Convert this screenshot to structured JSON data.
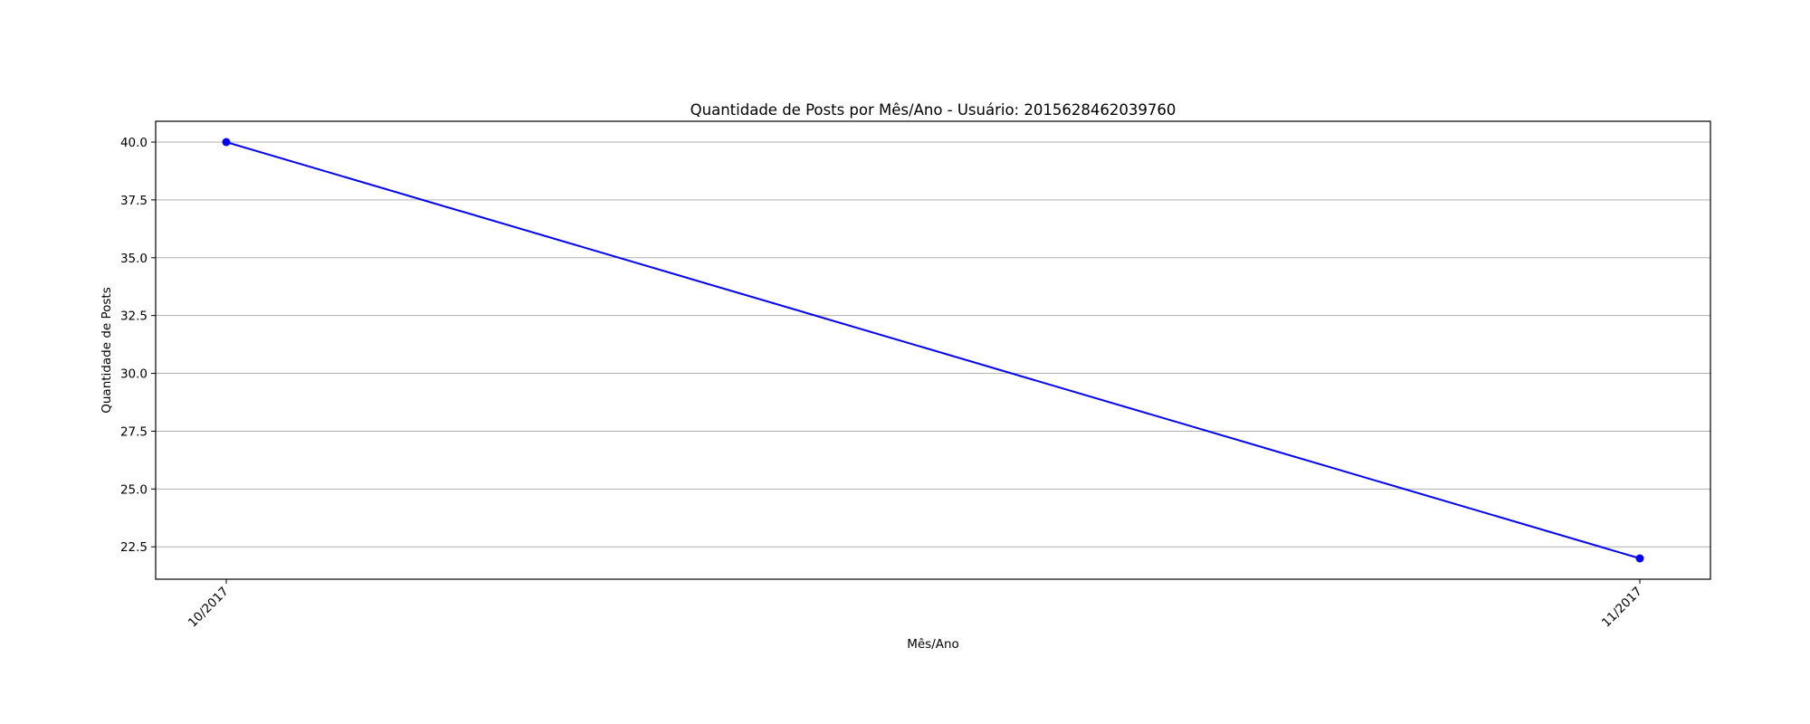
{
  "chart_data": {
    "type": "line",
    "title": "Quantidade de Posts por Mês/Ano - Usuário: 2015628462039760",
    "xlabel": "Mês/Ano",
    "ylabel": "Quantidade de Posts",
    "categories": [
      "10/2017",
      "11/2017"
    ],
    "series": [
      {
        "values": [
          40,
          22
        ],
        "color": "#0000ff",
        "marker": "circle"
      }
    ],
    "ylim": [
      21.1,
      40.9
    ],
    "yticks": [
      "22.5",
      "25.0",
      "27.5",
      "30.0",
      "32.5",
      "35.0",
      "37.5",
      "40.0"
    ],
    "grid": "horizontal",
    "legend": "none",
    "colors": {
      "line": "#0000ff",
      "grid": "#b0b0b0",
      "axes": "#000000"
    }
  }
}
